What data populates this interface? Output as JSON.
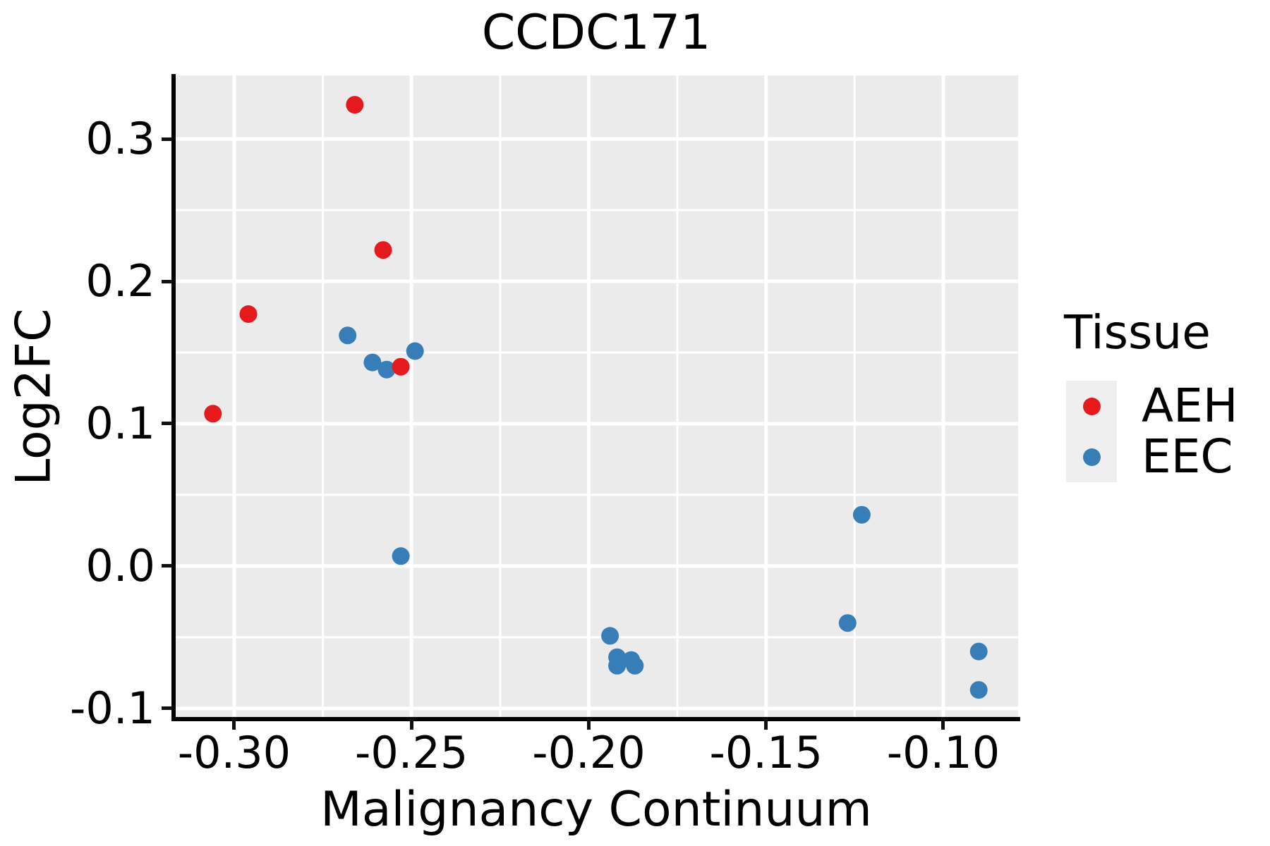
{
  "title": "CCDC171",
  "axes": {
    "x": {
      "label": "Malignancy Continuum",
      "ticks": [
        {
          "label": "-0.30",
          "value": -0.3
        },
        {
          "label": "-0.25",
          "value": -0.25
        },
        {
          "label": "-0.20",
          "value": -0.2
        },
        {
          "label": "-0.15",
          "value": -0.15
        },
        {
          "label": "-0.10",
          "value": -0.1
        }
      ],
      "minor_ticks": [
        -0.275,
        -0.225,
        -0.175,
        -0.125
      ]
    },
    "y": {
      "label": "Log2FC",
      "ticks": [
        {
          "label": "0.3",
          "value": 0.3
        },
        {
          "label": "0.2",
          "value": 0.2
        },
        {
          "label": "0.1",
          "value": 0.1
        },
        {
          "label": "0.0",
          "value": 0.0
        },
        {
          "label": "-0.1",
          "value": -0.1
        }
      ],
      "minor_ticks": [
        0.25,
        0.15,
        0.05,
        -0.05
      ]
    }
  },
  "legend": {
    "title": "Tissue",
    "position": "right",
    "items": [
      {
        "label": "AEH",
        "color": "#E41A1C"
      },
      {
        "label": "EEC",
        "color": "#377EB8"
      }
    ]
  },
  "colors": {
    "panel_background": "#EBEBEB",
    "grid": "#FFFFFF",
    "axis": "#000000",
    "legend_key_background": "#EFEFEF",
    "aeh": "#E41A1C",
    "eec": "#377EB8"
  },
  "chart_data": {
    "type": "scatter",
    "title": "CCDC171",
    "xlabel": "Malignancy Continuum",
    "ylabel": "Log2FC",
    "xlim": [
      -0.3169,
      -0.0789
    ],
    "ylim": [
      -0.1075,
      0.3446
    ],
    "grid": true,
    "legend_position": "right",
    "point_radius_px": 12.5,
    "series": [
      {
        "name": "AEH",
        "color": "#E41A1C",
        "points": [
          [
            -0.306,
            0.107
          ],
          [
            -0.296,
            0.177
          ],
          [
            -0.266,
            0.324
          ],
          [
            -0.258,
            0.222
          ],
          [
            -0.253,
            0.14
          ]
        ]
      },
      {
        "name": "EEC",
        "color": "#377EB8",
        "points": [
          [
            -0.268,
            0.162
          ],
          [
            -0.261,
            0.143
          ],
          [
            -0.257,
            0.138
          ],
          [
            -0.249,
            0.151
          ],
          [
            -0.253,
            0.007
          ],
          [
            -0.194,
            -0.049
          ],
          [
            -0.192,
            -0.064
          ],
          [
            -0.192,
            -0.07
          ],
          [
            -0.188,
            -0.066
          ],
          [
            -0.187,
            -0.07
          ],
          [
            -0.123,
            0.036
          ],
          [
            -0.127,
            -0.04
          ],
          [
            -0.09,
            -0.06
          ],
          [
            -0.09,
            -0.087
          ]
        ]
      }
    ]
  }
}
